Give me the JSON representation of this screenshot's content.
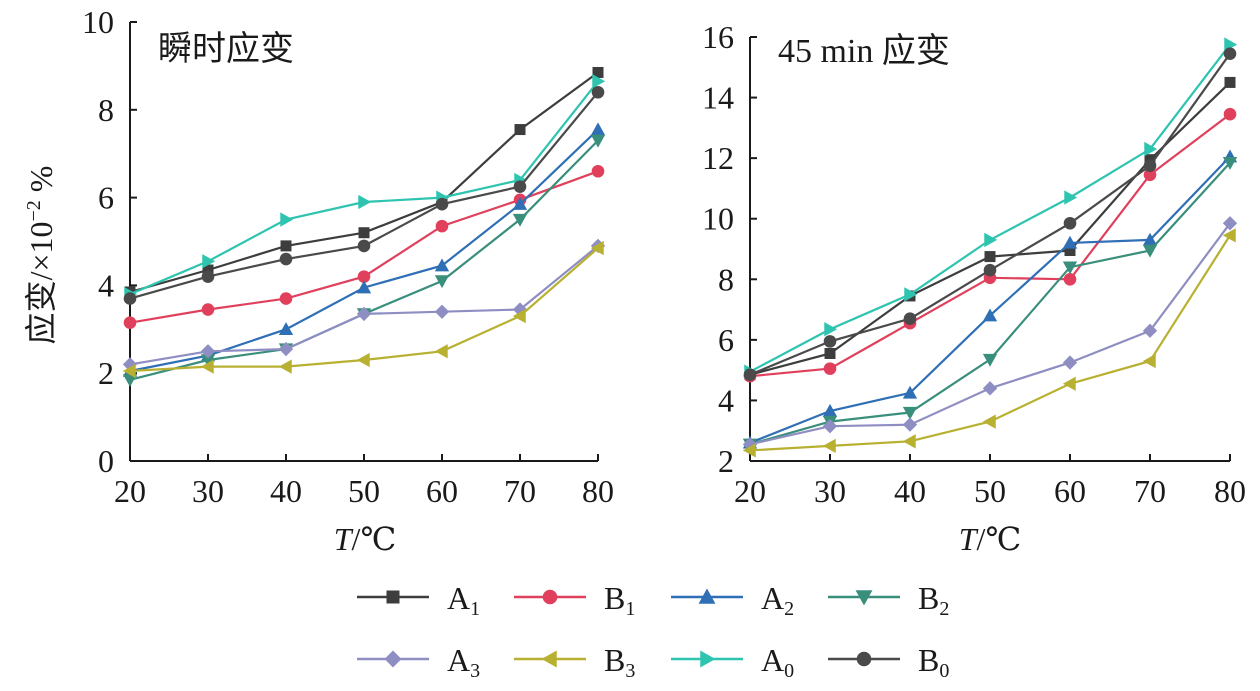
{
  "figure": {
    "ylabel": "应变/×10",
    "ylabel_exp": "−2",
    "ylabel_unit": " %",
    "xlabel_italic": "T",
    "xlabel_unit": "/℃"
  },
  "colors": {
    "A1": "#3d3d3d",
    "B1": "#e0405c",
    "A2": "#2f6fb5",
    "B2": "#3a8e7c",
    "A3": "#8e8ec2",
    "B3": "#b8b030",
    "A0": "#2ec4b0",
    "B0": "#4a4a4a"
  },
  "legend": [
    {
      "key": "A1",
      "main": "A",
      "sub": "1",
      "marker": "square"
    },
    {
      "key": "B1",
      "main": "B",
      "sub": "1",
      "marker": "circle"
    },
    {
      "key": "A2",
      "main": "A",
      "sub": "2",
      "marker": "triangle-up"
    },
    {
      "key": "B2",
      "main": "B",
      "sub": "2",
      "marker": "triangle-down"
    },
    {
      "key": "A3",
      "main": "A",
      "sub": "3",
      "marker": "diamond"
    },
    {
      "key": "B3",
      "main": "B",
      "sub": "3",
      "marker": "triangle-left"
    },
    {
      "key": "A0",
      "main": "A",
      "sub": "0",
      "marker": "triangle-right"
    },
    {
      "key": "B0",
      "main": "B",
      "sub": "0",
      "marker": "circle"
    }
  ],
  "chart_data": [
    {
      "type": "line",
      "title": "瞬时应变",
      "x": [
        20,
        30,
        40,
        50,
        60,
        70,
        80
      ],
      "xlim": [
        20,
        80
      ],
      "ylim": [
        0,
        10
      ],
      "xticks": [
        20,
        30,
        40,
        50,
        60,
        70,
        80
      ],
      "yticks": [
        0,
        2,
        4,
        6,
        8,
        10
      ],
      "series": [
        {
          "name": "A1",
          "values": [
            3.85,
            4.35,
            4.9,
            5.2,
            5.9,
            7.55,
            8.85
          ]
        },
        {
          "name": "B1",
          "values": [
            3.15,
            3.45,
            3.7,
            4.2,
            5.35,
            5.95,
            6.6
          ]
        },
        {
          "name": "A2",
          "values": [
            2.05,
            2.4,
            3.0,
            3.95,
            4.45,
            5.85,
            7.55
          ]
        },
        {
          "name": "B2",
          "values": [
            1.85,
            2.3,
            2.55,
            3.35,
            4.1,
            5.5,
            7.3
          ]
        },
        {
          "name": "A3",
          "values": [
            2.2,
            2.5,
            2.55,
            3.35,
            3.4,
            3.45,
            4.9
          ]
        },
        {
          "name": "B3",
          "values": [
            2.05,
            2.15,
            2.15,
            2.3,
            2.5,
            3.3,
            4.85
          ]
        },
        {
          "name": "A0",
          "values": [
            3.8,
            4.55,
            5.5,
            5.9,
            6.0,
            6.4,
            8.65
          ]
        },
        {
          "name": "B0",
          "values": [
            3.7,
            4.2,
            4.6,
            4.9,
            5.85,
            6.25,
            8.4
          ]
        }
      ]
    },
    {
      "type": "line",
      "title": "45 min 应变",
      "x": [
        20,
        30,
        40,
        50,
        60,
        70,
        80
      ],
      "xlim": [
        20,
        80
      ],
      "ylim": [
        2,
        16
      ],
      "xticks": [
        20,
        30,
        40,
        50,
        60,
        70,
        80
      ],
      "yticks": [
        2,
        4,
        6,
        8,
        10,
        12,
        14,
        16
      ],
      "series": [
        {
          "name": "A1",
          "values": [
            4.85,
            5.55,
            7.45,
            8.75,
            8.95,
            11.95,
            14.5
          ]
        },
        {
          "name": "B1",
          "values": [
            4.8,
            5.05,
            6.55,
            8.05,
            8.0,
            11.45,
            13.45
          ]
        },
        {
          "name": "A2",
          "values": [
            2.6,
            3.65,
            4.25,
            6.8,
            9.2,
            9.3,
            12.05
          ]
        },
        {
          "name": "B2",
          "values": [
            2.55,
            3.3,
            3.6,
            5.35,
            8.4,
            8.95,
            11.85
          ]
        },
        {
          "name": "A3",
          "values": [
            2.55,
            3.15,
            3.2,
            4.4,
            5.25,
            6.3,
            9.85
          ]
        },
        {
          "name": "B3",
          "values": [
            2.35,
            2.5,
            2.65,
            3.3,
            4.55,
            5.3,
            9.45
          ]
        },
        {
          "name": "A0",
          "values": [
            4.95,
            6.35,
            7.5,
            9.3,
            10.7,
            12.3,
            15.75
          ]
        },
        {
          "name": "B0",
          "values": [
            4.85,
            5.95,
            6.7,
            8.3,
            9.85,
            11.75,
            15.45
          ]
        }
      ]
    }
  ]
}
